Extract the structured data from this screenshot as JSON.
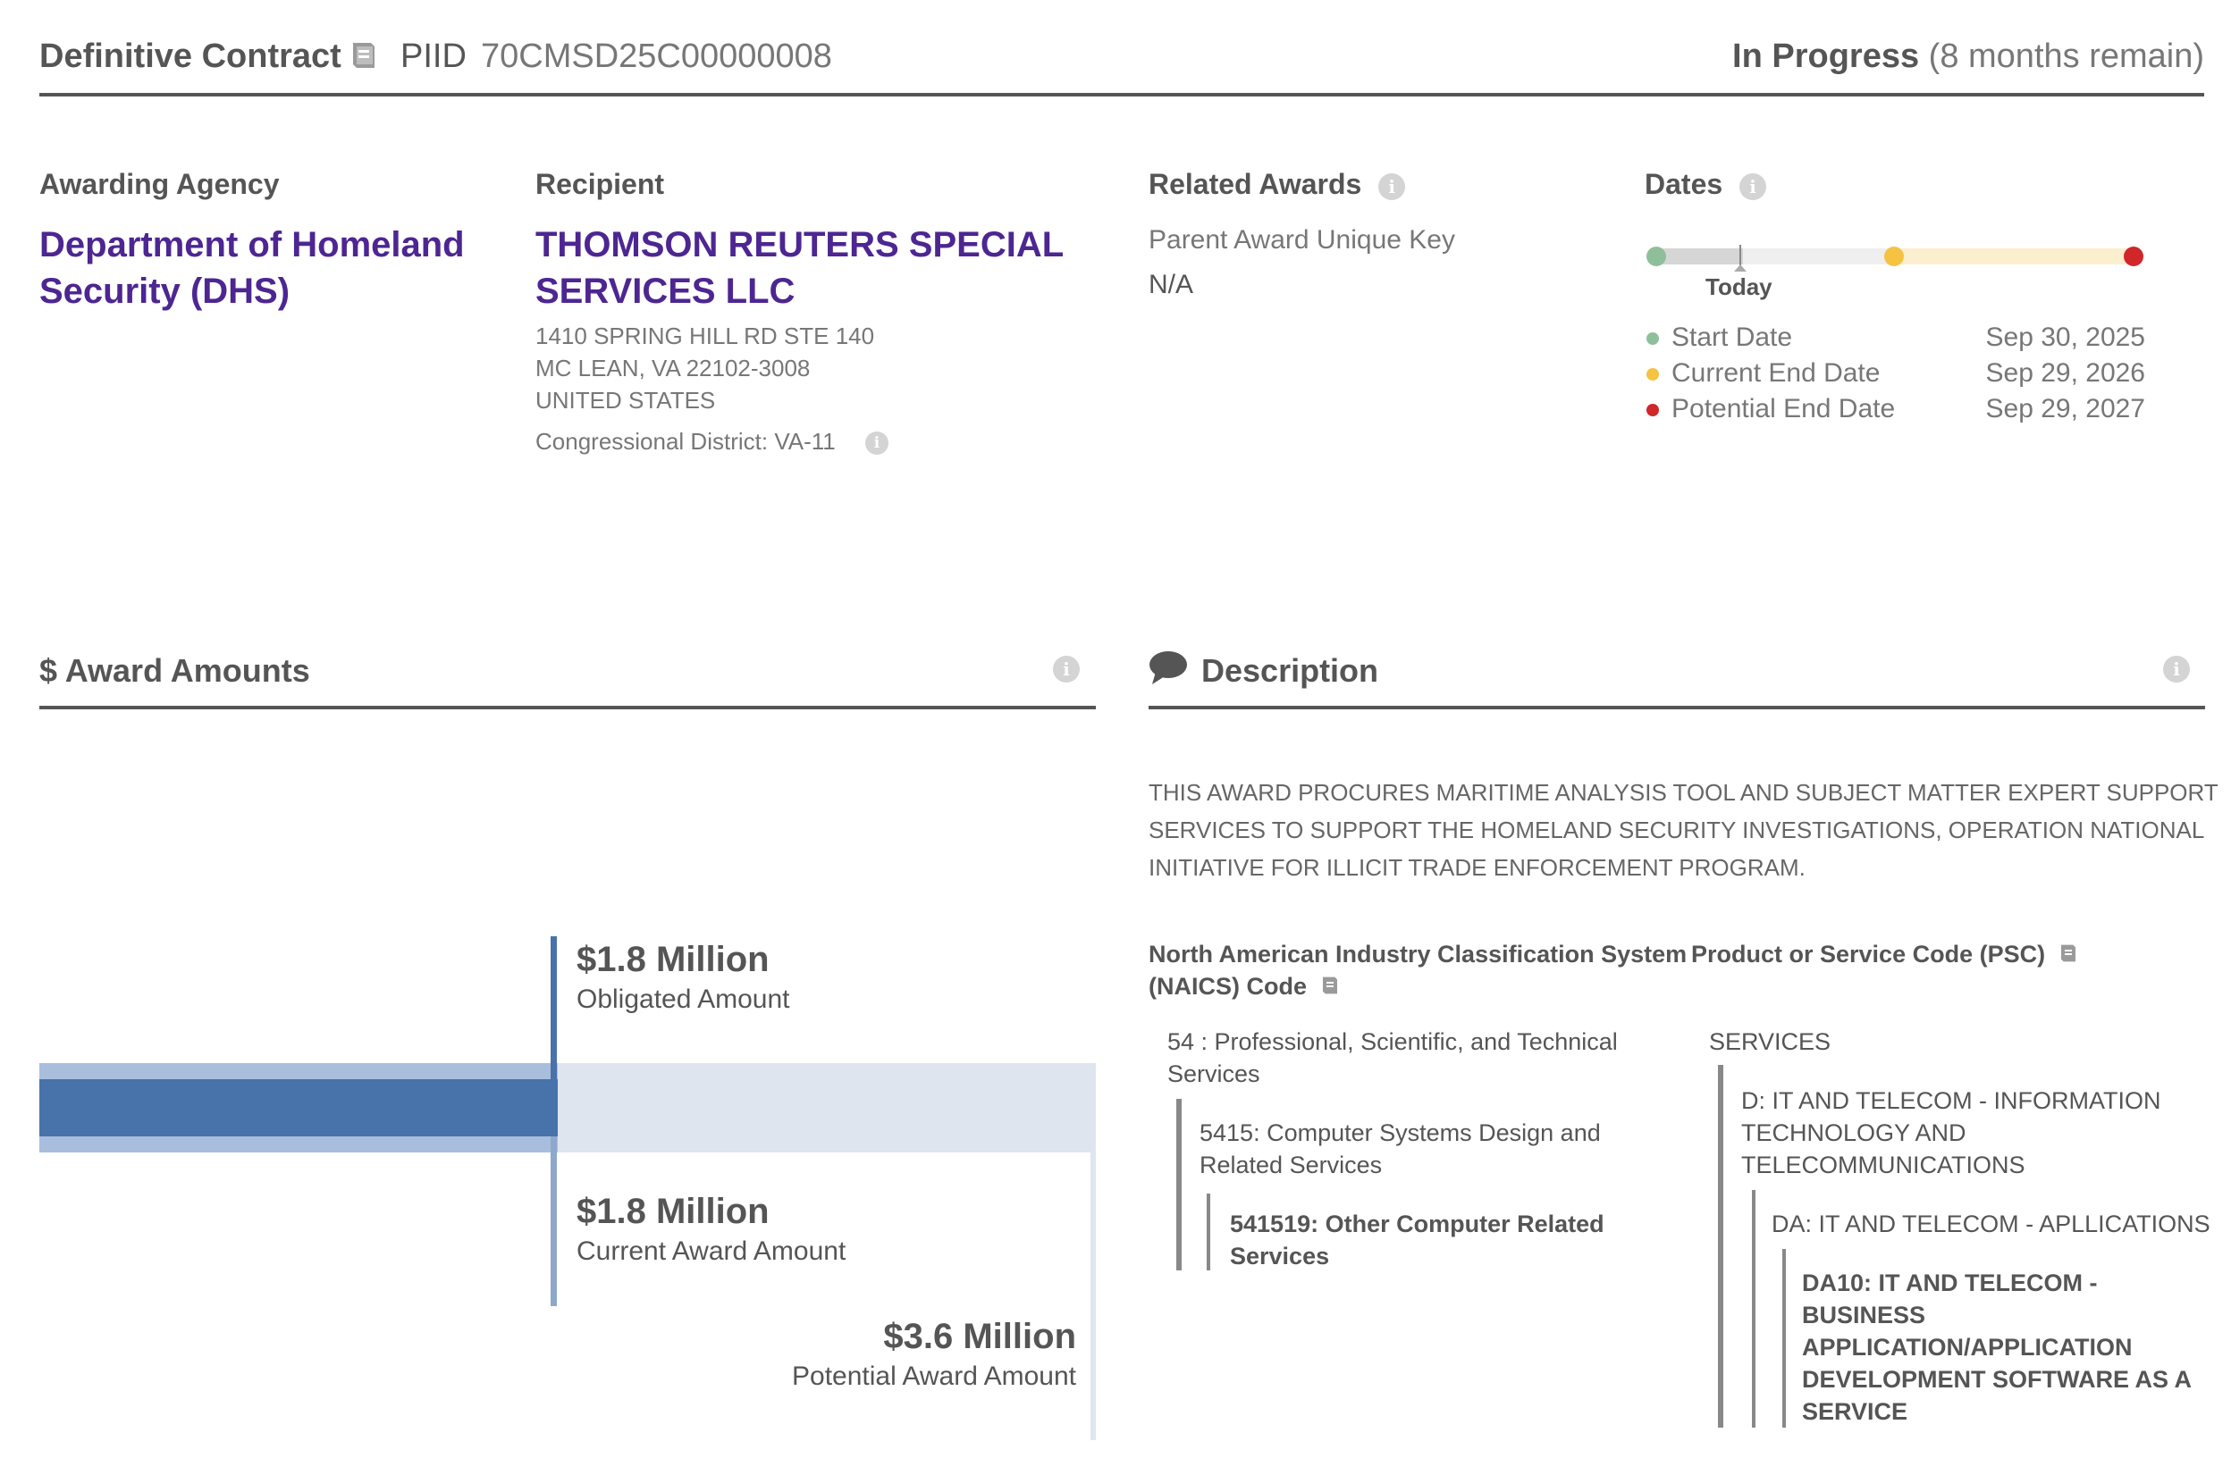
{
  "header": {
    "award_type": "Definitive Contract",
    "piid_label": "PIID",
    "piid_value": "70CMSD25C00000008",
    "status": "In Progress",
    "status_note": "(8 months remain)"
  },
  "awarding_agency": {
    "label": "Awarding Agency",
    "name_line1": "Department of Homeland",
    "name_line2": "Security (DHS)"
  },
  "recipient": {
    "label": "Recipient",
    "name_line1": "THOMSON REUTERS SPECIAL",
    "name_line2": "SERVICES LLC",
    "address1": "1410 SPRING HILL RD STE 140",
    "address2": "MC LEAN, VA 22102-3008",
    "country": "UNITED STATES",
    "district": "Congressional District: VA-11"
  },
  "related_awards": {
    "label": "Related Awards",
    "parent_key_label": "Parent Award Unique Key",
    "parent_key_value": "N/A"
  },
  "dates": {
    "label": "Dates",
    "today_label": "Today",
    "rows": [
      {
        "label": "Start Date",
        "value": "Sep 30, 2025",
        "color": "#8fbf9a"
      },
      {
        "label": "Current End Date",
        "value": "Sep 29, 2026",
        "color": "#f5c242"
      },
      {
        "label": "Potential End Date",
        "value": "Sep 29, 2027",
        "color": "#d1262a"
      }
    ]
  },
  "award_amounts": {
    "title": "$ Award Amounts",
    "obligated_value": "$1.8 Million",
    "obligated_label": "Obligated Amount",
    "current_value": "$1.8 Million",
    "current_label": "Current Award Amount",
    "potential_value": "$3.6 Million",
    "potential_label": "Potential Award Amount"
  },
  "description": {
    "title": "Description",
    "text_line1": "THIS AWARD PROCURES MARITIME ANALYSIS TOOL AND SUBJECT MATTER EXPERT SUPPORT",
    "text_line2": "SERVICES TO SUPPORT THE HOMELAND SECURITY INVESTIGATIONS, OPERATION NATIONAL",
    "text_line3": "INITIATIVE FOR ILLICIT TRADE ENFORCEMENT PROGRAM.",
    "naics_title_line1": "North American Industry Classification System",
    "naics_title_line2": "(NAICS)  Code",
    "naics_l1_line1": "54 : Professional, Scientific, and Technical",
    "naics_l1_line2": "Services",
    "naics_l2_line1": "5415: Computer Systems Design and",
    "naics_l2_line2": "Related Services",
    "naics_l3_line1": "541519: Other Computer Related",
    "naics_l3_line2": "Services",
    "psc_title": "Product or Service Code  (PSC)",
    "psc_l1": "SERVICES",
    "psc_l2_line1": "D: IT AND TELECOM - INFORMATION",
    "psc_l2_line2": "TECHNOLOGY AND",
    "psc_l2_line3": "TELECOMMUNICATIONS",
    "psc_l3": "DA: IT AND TELECOM - APLLICATIONS",
    "psc_l4_line1": "DA10: IT AND TELECOM -",
    "psc_l4_line2": "BUSINESS",
    "psc_l4_line3": "APPLICATION/APPLICATION",
    "psc_l4_line4": "DEVELOPMENT SOFTWARE AS A",
    "psc_l4_line5": "SERVICE"
  },
  "icons": {
    "glossary": "book-icon",
    "info": "info-icon",
    "comment": "comment-icon"
  }
}
